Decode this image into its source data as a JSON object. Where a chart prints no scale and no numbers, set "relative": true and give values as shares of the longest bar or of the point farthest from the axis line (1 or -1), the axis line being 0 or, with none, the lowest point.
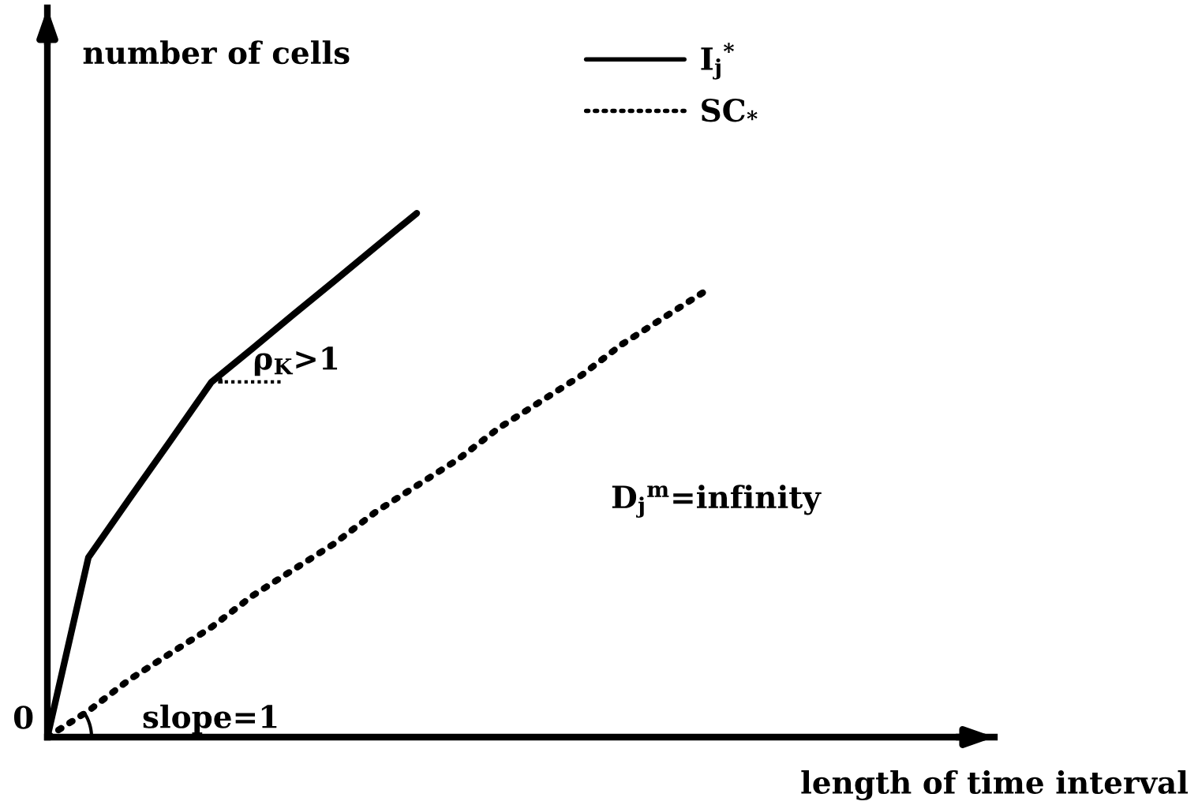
{
  "chart_data": {
    "type": "line",
    "relative": true,
    "ylabel": "number of cells",
    "xlabel": "length of time interval",
    "legend": "top",
    "categories": [
      null,
      null,
      null,
      null,
      null,
      null,
      null,
      null,
      null,
      null,
      null,
      null,
      null,
      null,
      null,
      null,
      null
    ],
    "series": [
      {
        "name": "I$_{j}$$^{*}$",
        "color": "#000000",
        "line_style": "solid",
        "values": [
          0,
          0.343,
          0.455,
          0.566,
          0.678,
          0.742,
          0.807,
          0.871,
          0.936,
          1.0,
          null,
          null,
          null,
          null,
          null,
          null,
          null
        ]
      },
      {
        "name": "SC$_{*}$",
        "color": "#000000",
        "line_style": "dotted",
        "values": [
          0,
          0.05,
          0.11,
          0.16,
          0.21,
          0.27,
          0.32,
          0.37,
          0.43,
          0.48,
          0.53,
          0.59,
          0.64,
          0.69,
          0.75,
          0.8,
          0.85
        ]
      }
    ],
    "annotations": [
      "0",
      "ρ$_{K}$>1",
      "slope=1",
      "D$_{j}$$^{m}$=infinity"
    ]
  }
}
